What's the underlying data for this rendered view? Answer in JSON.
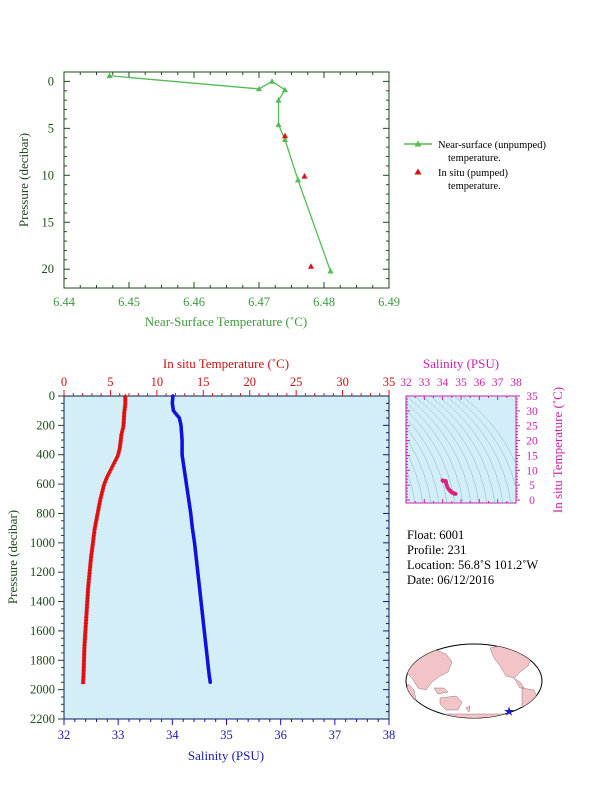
{
  "colors": {
    "near_surface": "#55bb55",
    "in_situ": "#e01010",
    "salinity": "#1010e0",
    "ts_curve": "#e0207a",
    "panel_bg": "#d4eef8",
    "axis_dark": "#1f4a1f"
  },
  "chart_data": [
    {
      "type": "line",
      "id": "near_surface_temperature",
      "xlabel": "Near-Surface Temperature (˚C)",
      "ylabel": "Pressure (decibar)",
      "xlim": [
        6.44,
        6.49
      ],
      "ylim": [
        22,
        -1
      ],
      "x_ticks": [
        "6.44",
        "6.45",
        "6.46",
        "6.47",
        "6.48",
        "6.49"
      ],
      "y_ticks": [
        "0",
        "5",
        "10",
        "15",
        "20"
      ],
      "series": [
        {
          "name": "Near-surface (unpumped) temperature.",
          "marker": "triangle",
          "points": [
            [
              6.481,
              20.2
            ],
            [
              6.476,
              10.5
            ],
            [
              6.474,
              6.2
            ],
            [
              6.473,
              4.6
            ],
            [
              6.473,
              2.0
            ],
            [
              6.474,
              0.9
            ],
            [
              6.472,
              0.0
            ],
            [
              6.47,
              0.8
            ],
            [
              6.447,
              -0.6
            ]
          ]
        },
        {
          "name": "In situ (pumped) temperature.",
          "marker": "triangle",
          "points": [
            [
              6.474,
              5.8
            ],
            [
              6.477,
              10.1
            ],
            [
              6.478,
              19.7
            ]
          ]
        }
      ]
    },
    {
      "type": "scatter",
      "id": "profile",
      "ylabel": "Pressure (decibar)",
      "top_axis_label": "In situ Temperature (˚C)",
      "bottom_axis_label": "Salinity (PSU)",
      "temperature_range": [
        0,
        35
      ],
      "salinity_range": [
        32,
        38
      ],
      "ylim": [
        2200,
        0
      ],
      "temperature_ticks": [
        "0",
        "5",
        "10",
        "15",
        "20",
        "25",
        "30",
        "35"
      ],
      "salinity_ticks": [
        "32",
        "33",
        "34",
        "35",
        "36",
        "37",
        "38"
      ],
      "y_ticks": [
        "0",
        "200",
        "400",
        "600",
        "800",
        "1000",
        "1200",
        "1400",
        "1600",
        "1800",
        "2000",
        "2200"
      ],
      "temperature_profile": [
        [
          0,
          6.6
        ],
        [
          50,
          6.6
        ],
        [
          100,
          6.5
        ],
        [
          150,
          6.45
        ],
        [
          200,
          6.4
        ],
        [
          250,
          6.2
        ],
        [
          300,
          6.1
        ],
        [
          350,
          6.0
        ],
        [
          400,
          5.8
        ],
        [
          450,
          5.4
        ],
        [
          500,
          5.0
        ],
        [
          550,
          4.6
        ],
        [
          600,
          4.3
        ],
        [
          700,
          3.9
        ],
        [
          800,
          3.6
        ],
        [
          900,
          3.3
        ],
        [
          1000,
          3.1
        ],
        [
          1100,
          2.9
        ],
        [
          1200,
          2.75
        ],
        [
          1300,
          2.6
        ],
        [
          1400,
          2.5
        ],
        [
          1500,
          2.4
        ],
        [
          1600,
          2.3
        ],
        [
          1700,
          2.2
        ],
        [
          1800,
          2.15
        ],
        [
          1900,
          2.1
        ],
        [
          1950,
          2.05
        ]
      ],
      "salinity_profile": [
        [
          0,
          34.01
        ],
        [
          50,
          34.0
        ],
        [
          100,
          34.02
        ],
        [
          150,
          34.13
        ],
        [
          200,
          34.16
        ],
        [
          250,
          34.17
        ],
        [
          300,
          34.18
        ],
        [
          350,
          34.18
        ],
        [
          400,
          34.18
        ],
        [
          500,
          34.22
        ],
        [
          600,
          34.26
        ],
        [
          700,
          34.3
        ],
        [
          800,
          34.34
        ],
        [
          900,
          34.37
        ],
        [
          1000,
          34.41
        ],
        [
          1100,
          34.44
        ],
        [
          1200,
          34.47
        ],
        [
          1300,
          34.5
        ],
        [
          1400,
          34.53
        ],
        [
          1500,
          34.56
        ],
        [
          1600,
          34.59
        ],
        [
          1700,
          34.62
        ],
        [
          1800,
          34.65
        ],
        [
          1900,
          34.68
        ],
        [
          1950,
          34.7
        ]
      ]
    },
    {
      "type": "scatter",
      "id": "ts_diagram",
      "top_axis_label": "Salinity (PSU)",
      "right_axis_label": "In situ Temperature (˚C)",
      "salinity_range": [
        32,
        38
      ],
      "temperature_range": [
        -1,
        35
      ],
      "salinity_ticks": [
        "32",
        "33",
        "34",
        "35",
        "36",
        "37",
        "38"
      ],
      "temperature_ticks": [
        "0",
        "5",
        "10",
        "15",
        "20",
        "25",
        "30",
        "35"
      ],
      "points": [
        [
          34.0,
          6.6
        ],
        [
          34.02,
          6.45
        ],
        [
          34.16,
          6.4
        ],
        [
          34.18,
          6.0
        ],
        [
          34.18,
          5.8
        ],
        [
          34.22,
          5.0
        ],
        [
          34.26,
          4.3
        ],
        [
          34.34,
          3.6
        ],
        [
          34.41,
          3.1
        ],
        [
          34.47,
          2.75
        ],
        [
          34.53,
          2.5
        ],
        [
          34.59,
          2.3
        ],
        [
          34.65,
          2.15
        ],
        [
          34.7,
          2.05
        ]
      ]
    }
  ],
  "float_info": {
    "float": "Float:  6001",
    "profile": "Profile:  231",
    "location": "Location:  56.8˚S  101.2˚W",
    "date": "Date:  06/12/2016"
  },
  "map": {
    "marker_icon": "star-icon",
    "marker_lat": -56.8,
    "marker_lon": -101.2
  }
}
